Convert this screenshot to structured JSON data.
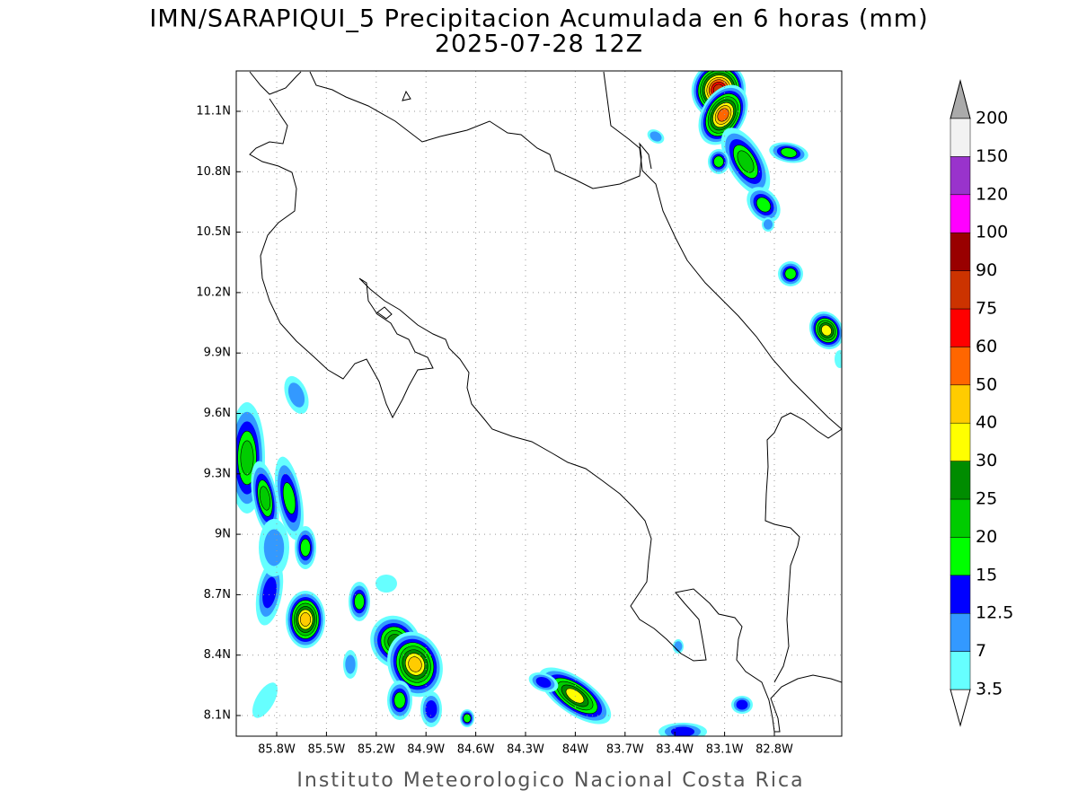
{
  "title": "IMN/SARAPIQUI_5 Precipitacion Acumulada en 6 horas (mm)",
  "subtitle": "2025-07-28 12Z",
  "lat_ticks": [
    "11.1N",
    "10.8N",
    "10.5N",
    "10.2N",
    "9.9N",
    "9.6N",
    "9.3N",
    "9N",
    "8.7N",
    "8.4N",
    "8.1N"
  ],
  "lon_ticks": [
    "85.8W",
    "85.5W",
    "85.2W",
    "84.9W",
    "84.6W",
    "84.3W",
    "84W",
    "83.7W",
    "83.4W",
    "83.1W",
    "82.8W"
  ],
  "colorbar": {
    "labels": [
      "3.5",
      "7",
      "12.5",
      "15",
      "20",
      "25",
      "30",
      "40",
      "50",
      "60",
      "75",
      "90",
      "100",
      "120",
      "150",
      "200"
    ],
    "colors": [
      "#66ffff",
      "#3399ff",
      "#0000ff",
      "#00ff00",
      "#00cc00",
      "#008c00",
      "#ffff00",
      "#ffcc00",
      "#ff6600",
      "#ff0000",
      "#cc3300",
      "#990000",
      "#ff00ff",
      "#9933cc",
      "#f2f2f2"
    ],
    "below_color": "#ffffff",
    "above_color": "#aaaaaa"
  },
  "footer": "Instituto Meteorologico Nacional Costa Rica"
}
